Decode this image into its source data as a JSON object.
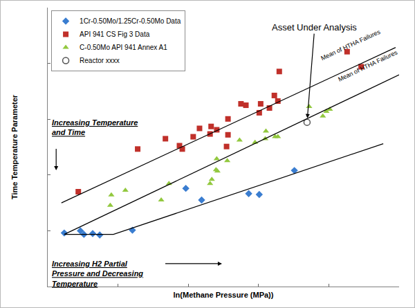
{
  "chart_data": {
    "type": "scatter",
    "x_label": "ln(Methane Pressure (MPa))",
    "y_label": "Time Temperature Parameter",
    "xlim": [
      0,
      100
    ],
    "ylim": [
      0,
      100
    ],
    "xticks": [
      0,
      20,
      40,
      60,
      80,
      100
    ],
    "yticks": [
      0,
      20,
      40,
      60,
      80,
      100
    ],
    "tick_labels": false,
    "grid": false,
    "legend": "upper left",
    "annotations": [
      "Asset Under Analysis",
      "Mean of HTHA Failures",
      "Mean of HTHA Failures",
      "Increasing Temperature and Time",
      "Increasing H2 Partial Pressure and Decreasing Temperature"
    ],
    "series": [
      {
        "name": "1Cr-0.50Mo/1.25Cr-0.50Mo Data",
        "type": "scatter",
        "marker": "diamond",
        "color": "#3a7dd0",
        "x": [
          4.7,
          9.3,
          10.3,
          12.8,
          14.8,
          24.1,
          39.3,
          43.8,
          57.2,
          60.2,
          70.2
        ],
        "values": [
          19.2,
          20.0,
          18.7,
          19.0,
          18.5,
          20.2,
          35.2,
          31.0,
          33.3,
          33.0,
          41.6
        ]
      },
      {
        "name": "API 941 CS Fig 3 Data",
        "type": "scatter",
        "marker": "square",
        "color": "#c0302a",
        "x": [
          8.7,
          25.6,
          33.5,
          37.5,
          38.3,
          41.4,
          43.2,
          46.2,
          46.5,
          48.1,
          51.3,
          51.3,
          50.9,
          55.0,
          56.4,
          60.2,
          60.6,
          63.1,
          64.5,
          65.5,
          65.9,
          85.2,
          89.2
        ],
        "values": [
          34.0,
          49.3,
          53.0,
          50.5,
          49.3,
          53.7,
          56.7,
          54.7,
          57.4,
          56.2,
          60.1,
          54.4,
          50.2,
          65.5,
          65.0,
          62.3,
          65.5,
          64.0,
          68.5,
          66.5,
          77.1,
          84.2,
          78.8
        ]
      },
      {
        "name": "C-0.50Mo API 941 Annex A1",
        "type": "scatter",
        "marker": "triangle-up",
        "color": "#92c83e",
        "x": [
          17.8,
          18.1,
          22.1,
          32.3,
          34.5,
          46.2,
          46.7,
          47.9,
          48.1,
          48.3,
          51.1,
          54.6,
          59.0,
          61.9,
          62.1,
          64.7,
          65.5,
          74.4,
          78.3,
          79.3,
          80.3
        ],
        "values": [
          29.1,
          32.8,
          34.5,
          31.0,
          36.9,
          36.9,
          38.4,
          41.9,
          45.8,
          41.4,
          45.1,
          52.5,
          51.7,
          53.0,
          55.7,
          53.7,
          53.7,
          64.5,
          61.1,
          62.8,
          63.5
        ]
      },
      {
        "name": "Reactor xxxx",
        "type": "scatter",
        "marker": "circle-open",
        "color": "#555555",
        "x": [
          73.8
        ],
        "values": [
          58.9
        ]
      },
      {
        "type": "line",
        "line_style": "solid",
        "color": "#000000",
        "x": [
          3.9,
          99.0
        ],
        "values": [
          30.0,
          85.7
        ]
      },
      {
        "type": "line",
        "line_style": "solid",
        "color": "#000000",
        "x": [
          4.7,
          100.0
        ],
        "values": [
          18.7,
          75.9
        ]
      },
      {
        "type": "line",
        "line_style": "solid",
        "color": "#000000",
        "x": [
          4.7,
          18.7,
          95.5
        ],
        "values": [
          18.7,
          18.7,
          51.2
        ]
      }
    ]
  }
}
